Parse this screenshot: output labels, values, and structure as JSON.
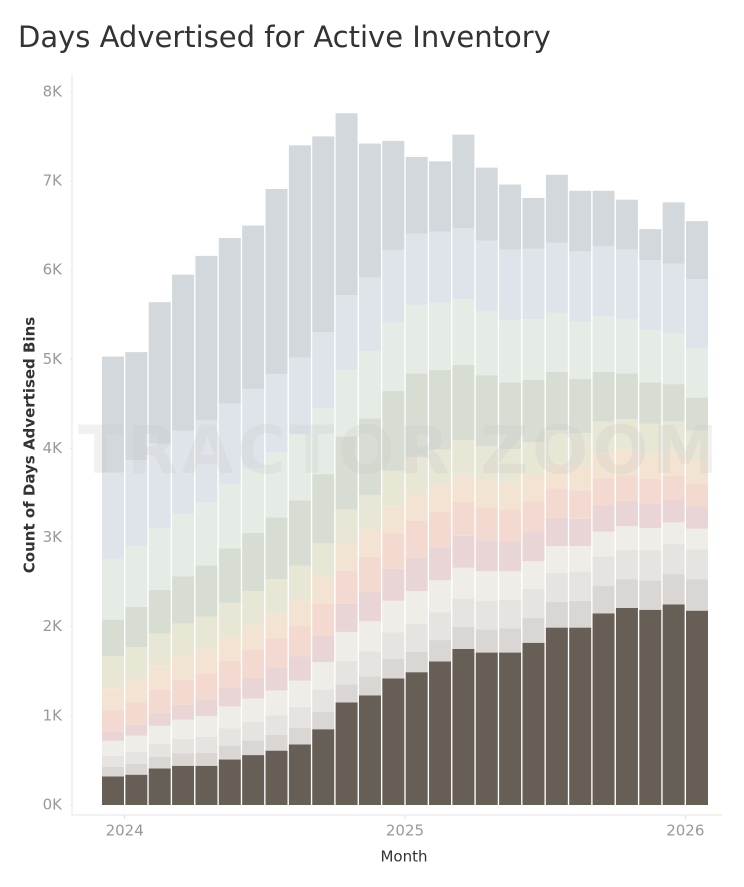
{
  "chart_data": {
    "type": "stacked-bar",
    "title": "Days Advertised for Active Inventory",
    "y_label": "Count of Days Advertised Bins",
    "x_label": "Month",
    "watermark": "TRACTOR ZOOM",
    "categories": [
      null,
      null,
      null,
      null,
      null,
      null,
      null,
      null,
      null,
      null,
      null,
      null,
      null,
      null,
      null,
      null,
      null,
      null,
      null,
      null,
      null,
      null,
      null,
      null,
      null,
      null
    ],
    "xticks": [
      2024,
      2025,
      2026
    ],
    "ylim": [
      0,
      8200
    ],
    "yticks": [
      {
        "value": 0,
        "label": "0K"
      },
      {
        "value": 1000,
        "label": "1K"
      },
      {
        "value": 2000,
        "label": "2K"
      },
      {
        "value": 3000,
        "label": "3K"
      },
      {
        "value": 4000,
        "label": "4K"
      },
      {
        "value": 5000,
        "label": "5K"
      },
      {
        "value": 6000,
        "label": "6K"
      },
      {
        "value": 7000,
        "label": "7K"
      },
      {
        "value": 8000,
        "label": "8K"
      }
    ],
    "series": [
      {
        "color": "#675e56",
        "values": [
          320,
          340,
          410,
          440,
          440,
          510,
          560,
          610,
          680,
          850,
          1150,
          1230,
          1420,
          1490,
          1610,
          1750,
          1710,
          1710,
          1820,
          1990,
          1990,
          2150,
          2210,
          2190,
          2250,
          2180
        ]
      },
      {
        "color": "#d9d6d3",
        "values": [
          110,
          119,
          128,
          138,
          147,
          156,
          165,
          175,
          184,
          193,
          202,
          212,
          221,
          230,
          240,
          250,
          260,
          270,
          280,
          290,
          300,
          310,
          320,
          330,
          340,
          350
        ]
      },
      {
        "color": "#e6e3e0",
        "values": [
          120,
          135,
          149,
          164,
          178,
          193,
          208,
          222,
          237,
          252,
          266,
          281,
          295,
          310,
          313,
          315,
          318,
          320,
          323,
          325,
          328,
          330,
          333,
          335,
          338,
          340
        ]
      },
      {
        "color": "#eeede7",
        "values": [
          170,
          185,
          201,
          216,
          232,
          247,
          262,
          278,
          293,
          308,
          324,
          339,
          355,
          370,
          358,
          347,
          335,
          323,
          312,
          300,
          288,
          277,
          265,
          253,
          242,
          230
        ]
      },
      {
        "color": "#e9d4d6",
        "values": [
          100,
          122,
          143,
          165,
          186,
          208,
          229,
          251,
          272,
          294,
          315,
          337,
          358,
          380,
          369,
          358,
          348,
          337,
          326,
          315,
          304,
          293,
          283,
          272,
          261,
          250
        ]
      },
      {
        "color": "#f3d9d0",
        "values": [
          240,
          253,
          266,
          279,
          292,
          305,
          318,
          332,
          345,
          358,
          371,
          384,
          397,
          410,
          397,
          383,
          370,
          357,
          343,
          330,
          317,
          303,
          290,
          277,
          263,
          250
        ]
      },
      {
        "color": "#f3e3d2",
        "values": [
          250,
          255,
          259,
          264,
          268,
          273,
          278,
          282,
          287,
          292,
          296,
          301,
          305,
          310,
          307,
          303,
          300,
          297,
          293,
          290,
          287,
          283,
          280,
          277,
          273,
          270
        ]
      },
      {
        "color": "#e8e6d5",
        "values": [
          360,
          363,
          366,
          369,
          372,
          375,
          378,
          382,
          385,
          388,
          391,
          394,
          397,
          400,
          394,
          388,
          383,
          377,
          371,
          365,
          359,
          353,
          348,
          342,
          336,
          330
        ]
      },
      {
        "color": "#d7ddd2",
        "values": [
          410,
          451,
          492,
          532,
          573,
          614,
          655,
          695,
          736,
          777,
          818,
          858,
          899,
          940,
          893,
          845,
          798,
          750,
          703,
          655,
          608,
          560,
          513,
          465,
          418,
          370
        ]
      },
      {
        "color": "#e4ece5",
        "values": [
          680,
          687,
          694,
          701,
          708,
          715,
          722,
          728,
          735,
          742,
          749,
          756,
          763,
          770,
          752,
          733,
          715,
          697,
          678,
          660,
          642,
          623,
          605,
          587,
          568,
          550
        ]
      },
      {
        "color": "#dfe4ea",
        "values": [
          970,
          957,
          944,
          931,
          918,
          905,
          892,
          878,
          865,
          852,
          839,
          826,
          813,
          800,
          798,
          797,
          795,
          793,
          792,
          790,
          788,
          787,
          785,
          783,
          782,
          780
        ]
      },
      {
        "color": "#d3d8dc",
        "values": [
          1300,
          1213,
          1588,
          1751,
          1846,
          1859,
          1833,
          2077,
          2381,
          2194,
          2039,
          1502,
          1227,
          860,
          789,
          1051,
          818,
          729,
          569,
          760,
          679,
          621,
          558,
          349,
          689,
          650
        ]
      }
    ]
  }
}
